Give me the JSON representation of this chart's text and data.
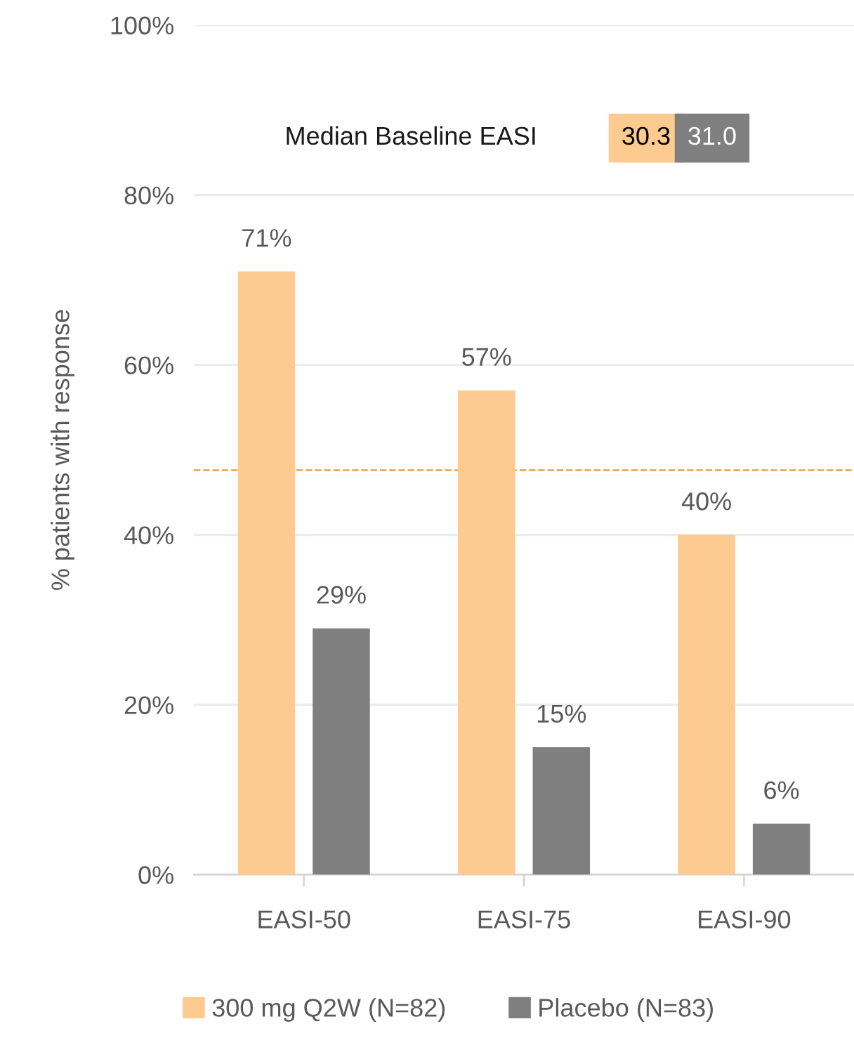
{
  "chart_data": {
    "type": "bar",
    "ylabel": "% patients with response",
    "categories": [
      "EASI-50",
      "EASI-75",
      "EASI-90"
    ],
    "series": [
      {
        "name": "300 mg Q2W (N=82)",
        "color": "#fdca8f",
        "values": [
          71,
          57,
          40
        ],
        "value_labels": [
          "71%",
          "57%",
          "40%"
        ]
      },
      {
        "name": "Placebo (N=83)",
        "color": "#7f7f7f",
        "values": [
          29,
          15,
          6
        ],
        "value_labels": [
          "29%",
          "15%",
          "6%"
        ]
      }
    ],
    "ylim": [
      0,
      100
    ],
    "yticks": [
      {
        "value": 0,
        "label": "0%"
      },
      {
        "value": 20,
        "label": "20%"
      },
      {
        "value": 40,
        "label": "40%"
      },
      {
        "value": 60,
        "label": "60%"
      },
      {
        "value": 80,
        "label": "80%"
      },
      {
        "value": 100,
        "label": "100%"
      }
    ],
    "grid": "y",
    "legend": "bottom",
    "ref_lines": [
      {
        "axis": "y",
        "value": 47.6,
        "color": "#e8a050",
        "line_style": "dashed"
      }
    ],
    "annotations": [
      "Median Baseline EASI",
      "30.3",
      "31.0"
    ]
  }
}
